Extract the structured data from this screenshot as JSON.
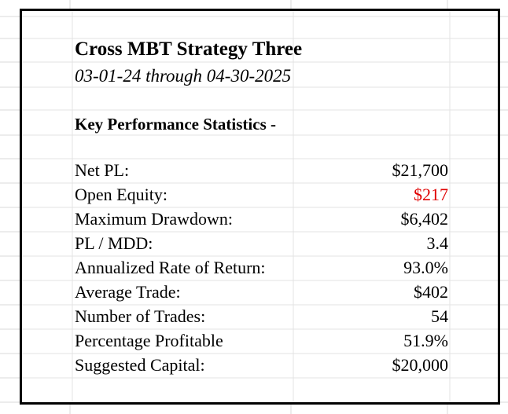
{
  "report": {
    "title": "Cross MBT Strategy Three",
    "date_range": "03-01-24 through 04-30-2025",
    "section_heading": "Key Performance Statistics -"
  },
  "stats": [
    {
      "label": "Net PL:",
      "value": "$21,700",
      "color": "#000000"
    },
    {
      "label": "Open Equity:",
      "value": "$217",
      "color": "#e00000"
    },
    {
      "label": "Maximum  Drawdown:",
      "value": "$6,402",
      "color": "#000000"
    },
    {
      "label": "PL / MDD:",
      "value": "3.4",
      "color": "#000000"
    },
    {
      "label": "Annualized Rate of Return:",
      "value": "93.0%",
      "color": "#000000"
    },
    {
      "label": "Average Trade:",
      "value": "$402",
      "color": "#000000"
    },
    {
      "label": "Number of Trades:",
      "value": "54",
      "color": "#000000"
    },
    {
      "label": "Percentage Profitable",
      "value": "51.9%",
      "color": "#000000"
    },
    {
      "label": "Suggested Capital:",
      "value": "$20,000",
      "color": "#000000"
    }
  ]
}
